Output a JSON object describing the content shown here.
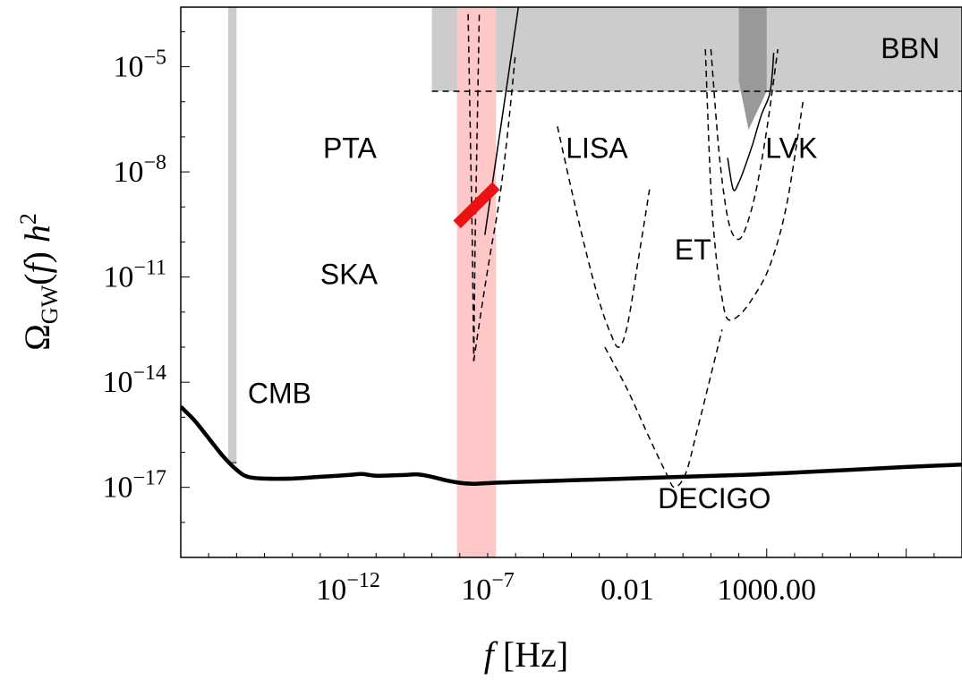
{
  "chart_data": {
    "type": "line",
    "xlabel": {
      "italic": "f",
      "rest": " [Hz]"
    },
    "ylabel": {
      "omega": "Ω",
      "sub": "GW",
      "italic_f": "f",
      "h": "h",
      "sup": "2"
    },
    "x_log10_range": [
      -18,
      10
    ],
    "y_log10_range": [
      -19,
      -3.3
    ],
    "x_ticks": [
      {
        "at": -12,
        "text": "10",
        "sup": "−12"
      },
      {
        "at": -7,
        "text": "10",
        "sup": "−7"
      },
      {
        "at": -2,
        "text": "0.01",
        "sup": ""
      },
      {
        "at": 3,
        "text": "1000.00",
        "sup": ""
      }
    ],
    "y_ticks": [
      {
        "at": -5,
        "text": "10",
        "sup": "−5"
      },
      {
        "at": -8,
        "text": "10",
        "sup": "−8"
      },
      {
        "at": -11,
        "text": "10",
        "sup": "−11"
      },
      {
        "at": -14,
        "text": "10",
        "sup": "−14"
      },
      {
        "at": -17,
        "text": "10",
        "sup": "−17"
      }
    ],
    "region_labels": {
      "bbn": "BBN",
      "pta": "PTA",
      "lisa": "LISA",
      "lvk": "LVK",
      "ska": "SKA",
      "et": "ET",
      "cmb": "CMB",
      "decigo": "DECIGO"
    },
    "signal_spectrum": {
      "log10_f": [
        -18,
        -17.5,
        -17,
        -16.5,
        -16,
        -15.6,
        -15,
        -14,
        -13,
        -12,
        -11.5,
        -11,
        -10,
        -9.5,
        -9,
        -8.5,
        -8,
        -7.5,
        -7,
        -6,
        -4,
        -2,
        0,
        2,
        4,
        6,
        8,
        10
      ],
      "log10_omega": [
        -14.7,
        -15.1,
        -15.6,
        -16.1,
        -16.5,
        -16.7,
        -16.75,
        -16.75,
        -16.7,
        -16.65,
        -16.62,
        -16.67,
        -16.65,
        -16.63,
        -16.7,
        -16.8,
        -16.87,
        -16.9,
        -16.88,
        -16.85,
        -16.8,
        -16.75,
        -16.7,
        -16.65,
        -16.58,
        -16.5,
        -16.42,
        -16.35
      ]
    },
    "bbn_bound": {
      "log10_f_min": -9,
      "log10_omega": -5.7
    },
    "cmb_band": {
      "log10_f": [
        -16.3,
        -16
      ],
      "log10_omega_min": -16.3
    },
    "ska_band": {
      "log10_f": [
        -8.1,
        -6.7
      ]
    },
    "pta_measurement": {
      "log10_f": [
        -8.1,
        -6.7
      ],
      "log10_omega": [
        -9.5,
        -8.4
      ]
    },
    "curves": {
      "pta": {
        "log10_f": [
          -7.7,
          -7.55,
          -7.5,
          -7.45,
          -7.3
        ],
        "log10_omega": [
          -3.5,
          -10,
          -13.4,
          -10,
          -3.5
        ]
      },
      "ska": {
        "log10_f": [
          -7.5,
          -7.2,
          -6.9,
          -6.6,
          -6.3,
          -6
        ],
        "log10_omega": [
          -13.4,
          -11.8,
          -10.3,
          -8.9,
          -7.0,
          -4.6
        ]
      },
      "ska_powerlaw": {
        "log10_f": [
          -7.1,
          -5.9
        ],
        "log10_omega": [
          -9.8,
          -3.3
        ]
      },
      "lisa": {
        "log10_f": [
          -4.5,
          -4,
          -3.5,
          -3,
          -2.6,
          -2.3,
          -2,
          -1.6,
          -1.2
        ],
        "log10_omega": [
          -6.7,
          -8.5,
          -10.2,
          -11.7,
          -12.6,
          -13.0,
          -12.4,
          -10.5,
          -8.5
        ]
      },
      "decigo": {
        "log10_f": [
          -2.8,
          -2,
          -1.2,
          -0.6,
          -0.3,
          0.1,
          0.5,
          1.0,
          1.4
        ],
        "log10_omega": [
          -13.0,
          -14.2,
          -15.6,
          -16.6,
          -17.0,
          -16.6,
          -15.4,
          -13.8,
          -12.5
        ]
      },
      "et": {
        "log10_f": [
          0.8,
          1.0,
          1.2,
          1.4,
          1.6,
          2.0,
          2.5,
          3.1,
          3.7,
          4.3
        ],
        "log10_omega": [
          -4.5,
          -8.5,
          -10.5,
          -11.6,
          -12.2,
          -12.1,
          -11.6,
          -10.7,
          -9.0,
          -6.0
        ]
      },
      "lvk_broad": {
        "log10_f": [
          1.0,
          1.3,
          1.6,
          1.9,
          2.2,
          2.6,
          3.0,
          3.4
        ],
        "log10_omega": [
          -4.5,
          -7.5,
          -9.3,
          -9.9,
          -9.7,
          -8.6,
          -6.8,
          -4.5
        ]
      },
      "lvk_solid": {
        "log10_f": [
          1.6,
          1.8,
          2.0,
          2.2,
          2.5,
          2.8,
          3.1,
          3.2,
          3.25
        ],
        "log10_omega": [
          -7.6,
          -8.5,
          -8.3,
          -7.9,
          -7.2,
          -6.4,
          -5.8,
          -5.2,
          -4.6
        ]
      }
    },
    "colors": {
      "bbn_fill": "#cccccc",
      "lvk_dark": "#999999",
      "ska_fill": "#ffc8c8",
      "pta_measurement": "#ee1111",
      "cmb": "#cccccc",
      "signal": "#000000"
    },
    "grid": false
  }
}
